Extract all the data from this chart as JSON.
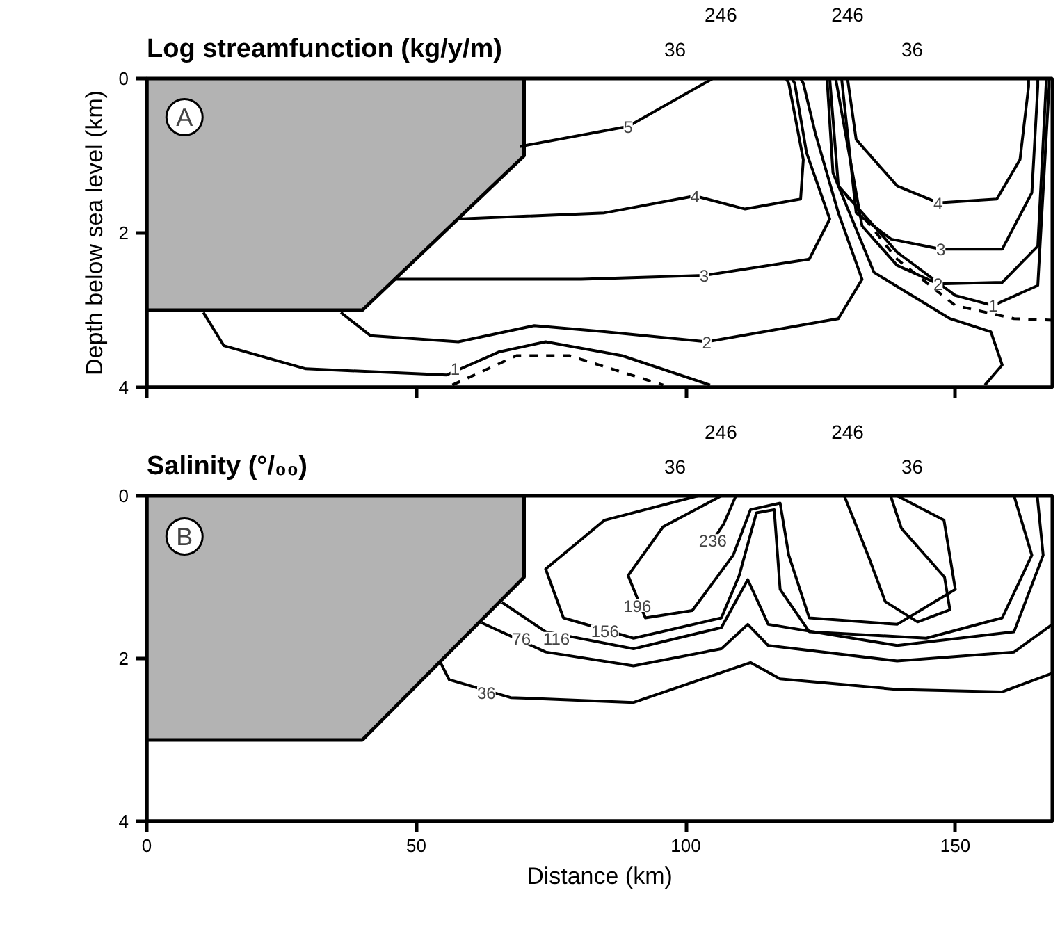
{
  "chart_data": [
    {
      "type": "line",
      "title": "Log streamfunction (kg/y/m)",
      "ylabel": "Depth below sea level (km)",
      "xlim": [
        0,
        168
      ],
      "ylim": [
        4,
        0
      ],
      "xticks": [
        0,
        50,
        100,
        150
      ],
      "yticks": [
        0,
        2,
        4
      ],
      "tick_labels": "y",
      "grid": false,
      "series": [
        {
          "type": "area",
          "color": "#b3b3b3",
          "x": [
            0,
            40,
            70,
            70
          ],
          "values": [
            3,
            3,
            1,
            0
          ]
        },
        {
          "color": "#000000",
          "x": [
            69.2,
            89.3,
            105
          ],
          "values": [
            0.88,
            0.62,
            0
          ]
        },
        {
          "color": "#000000",
          "x": [
            57.8,
            84.9,
            101.7,
            111,
            121.3,
            121.8,
            119.1,
            118.6
          ],
          "values": [
            1.82,
            1.74,
            1.52,
            1.69,
            1.56,
            1.05,
            0.06,
            0
          ]
        },
        {
          "color": "#000000",
          "x": [
            130,
            131.6,
            139.2,
            146.8,
            157.7,
            162,
            163.6,
            163.6
          ],
          "values": [
            0,
            0.79,
            1.39,
            1.61,
            1.56,
            1.05,
            0.1,
            0
          ]
        },
        {
          "color": "#000000",
          "x": [
            45.8,
            80.6,
            103.4,
            122.9,
            126.7,
            122.4,
            120.2,
            119.7
          ],
          "values": [
            2.6,
            2.6,
            2.55,
            2.34,
            1.82,
            0.96,
            0.06,
            0
          ]
        },
        {
          "color": "#000000",
          "x": [
            128.9,
            131.6,
            138.1,
            147.3,
            158.7,
            164.2,
            165.3,
            165.3
          ],
          "values": [
            0,
            1.74,
            2.08,
            2.21,
            2.21,
            1.48,
            0.1,
            0
          ]
        },
        {
          "color": "#000000",
          "x": [
            36,
            41.5,
            57.8,
            71.9,
            84.9,
            103.9,
            128.3,
            132.7,
            128.3,
            124,
            121.8,
            121.3
          ],
          "values": [
            3.03,
            3.33,
            3.41,
            3.2,
            3.28,
            3.41,
            3.11,
            2.6,
            1.74,
            0.7,
            0.06,
            0
          ]
        },
        {
          "color": "#000000",
          "x": [
            127.8,
            132.7,
            139.2,
            146.8,
            158.7,
            165.3,
            166.9
          ],
          "values": [
            0,
            1.91,
            2.42,
            2.66,
            2.64,
            2.17,
            0
          ]
        },
        {
          "color": "#000000",
          "x": [
            10.5,
            14.3,
            29.5,
            55.6,
            65.4,
            74,
            88.2,
            104.5
          ],
          "values": [
            3.03,
            3.46,
            3.76,
            3.84,
            3.54,
            3.41,
            3.59,
            3.97
          ]
        },
        {
          "color": "#000000",
          "line_style": "dashed",
          "x": [
            56.7,
            68.6,
            78.4,
            95.8
          ],
          "values": [
            3.97,
            3.59,
            3.59,
            3.97
          ]
        },
        {
          "color": "#000000",
          "x": [
            126.7,
            128.3,
            139.2,
            150,
            157,
            165.3,
            167.4,
            167.4
          ],
          "values": [
            0,
            1.39,
            2.25,
            2.81,
            2.94,
            2.68,
            0.1,
            0
          ]
        },
        {
          "color": "#000000",
          "line_style": "dashed",
          "x": [
            129.4,
            139.2,
            150,
            160.9,
            168
          ],
          "values": [
            1.48,
            2.34,
            2.94,
            3.11,
            3.13
          ]
        },
        {
          "color": "#000000",
          "x": [
            126.2,
            127.3,
            134.9,
            149,
            156.6,
            158.7,
            155.5
          ],
          "values": [
            0,
            1.22,
            2.51,
            3.11,
            3.28,
            3.71,
            3.97
          ]
        }
      ],
      "annotations": [
        "A",
        "246",
        "246",
        "36",
        "36",
        {
          "text": "5",
          "x": 89.3,
          "y": 0.62
        },
        {
          "text": "4",
          "x": 101.7,
          "y": 1.52
        },
        {
          "text": "4",
          "x": 146.8,
          "y": 1.61
        },
        {
          "text": "3",
          "x": 103.4,
          "y": 2.55
        },
        {
          "text": "3",
          "x": 147.3,
          "y": 2.21
        },
        {
          "text": "2",
          "x": 103.9,
          "y": 3.41
        },
        {
          "text": "2",
          "x": 146.8,
          "y": 2.66
        },
        {
          "text": "1",
          "x": 57.2,
          "y": 3.76
        },
        {
          "text": "1",
          "x": 157,
          "y": 2.94
        }
      ]
    },
    {
      "type": "line",
      "title": "Salinity (°/₀₀)",
      "xlabel": "Distance (km)",
      "xlim": [
        0,
        168
      ],
      "ylim": [
        4,
        0
      ],
      "xticks": [
        0,
        50,
        100,
        150
      ],
      "yticks": [
        0,
        2,
        4
      ],
      "grid": false,
      "series": [
        {
          "type": "area",
          "color": "#b3b3b3",
          "x": [
            0,
            40,
            70,
            70
          ],
          "values": [
            3,
            3,
            1,
            0
          ]
        },
        {
          "color": "#000000",
          "x": [
            54.5,
            56.1,
            67.5,
            90.3,
            112,
            117.5,
            139.2,
            158.7,
            168
          ],
          "values": [
            2.05,
            2.26,
            2.48,
            2.54,
            2.05,
            2.25,
            2.38,
            2.41,
            2.18
          ]
        },
        {
          "color": "#000000",
          "x": [
            62.1,
            74,
            90.3,
            106.6,
            111.5,
            115.3,
            139.2,
            160.9,
            168
          ],
          "values": [
            1.56,
            1.92,
            2.09,
            1.88,
            1.58,
            1.84,
            2.03,
            1.92,
            1.58
          ]
        },
        {
          "color": "#000000",
          "x": [
            65.9,
            74,
            90.3,
            106.6,
            111.5,
            115.3,
            139.2,
            160.9,
            166.3,
            165.2
          ],
          "values": [
            1.31,
            1.67,
            1.88,
            1.62,
            1.03,
            1.58,
            1.84,
            1.67,
            0.73,
            0
          ]
        },
        {
          "color": "#000000",
          "x": [
            102.3,
            84.9,
            74,
            77.3,
            90.3,
            106.6,
            109.9,
            113.1,
            116.4,
            117.5,
            122.9,
            144.6,
            158.7,
            164.2,
            160.9
          ],
          "values": [
            0,
            0.3,
            0.9,
            1.5,
            1.75,
            1.5,
            0.98,
            0.21,
            0.17,
            1.15,
            1.67,
            1.75,
            1.5,
            0.73,
            0
          ]
        },
        {
          "color": "#000000",
          "x": [
            106.6,
            95.8,
            89.3,
            92.5,
            101.2,
            108.8,
            112,
            117.5,
            119.1,
            122.9,
            139.2,
            150,
            147.9,
            139.2
          ],
          "values": [
            0,
            0.38,
            0.98,
            1.5,
            1.41,
            0.73,
            0.17,
            0.09,
            0.73,
            1.5,
            1.58,
            1.15,
            0.3,
            0
          ]
        },
        {
          "color": "#000000",
          "x": [
            109.3,
            107,
            104.5
          ],
          "values": [
            0,
            0.35,
            0.6
          ]
        },
        {
          "color": "#000000",
          "x": [
            129.4,
            133.8,
            137,
            143,
            149,
            148,
            140,
            138
          ],
          "values": [
            0,
            0.73,
            1.3,
            1.55,
            1.4,
            1.0,
            0.4,
            0
          ]
        }
      ],
      "annotations": [
        "B",
        "246",
        "246",
        "36",
        "36",
        {
          "text": "36",
          "x": 63,
          "y": 2.42
        },
        {
          "text": "76",
          "x": 69.5,
          "y": 1.75
        },
        {
          "text": "116",
          "x": 76,
          "y": 1.75
        },
        {
          "text": "156",
          "x": 85,
          "y": 1.66
        },
        {
          "text": "196",
          "x": 91,
          "y": 1.35
        },
        {
          "text": "236",
          "x": 105,
          "y": 0.55
        }
      ]
    }
  ]
}
